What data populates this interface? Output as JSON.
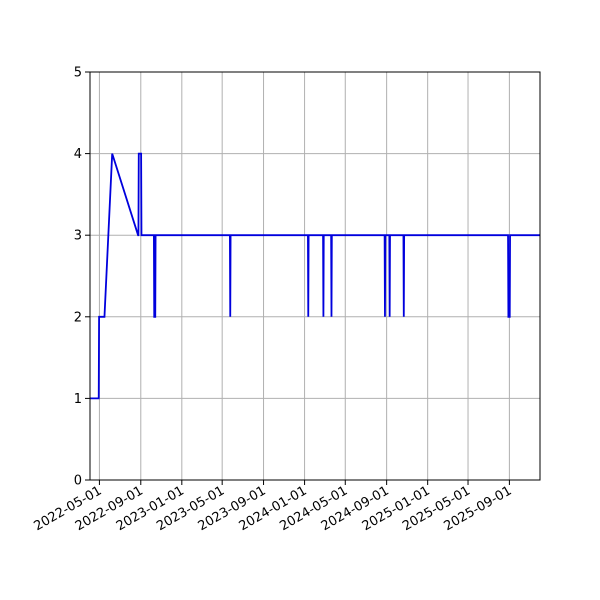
{
  "chart_data": {
    "type": "line",
    "title": "",
    "xlabel": "",
    "ylabel": "",
    "x_axis": "date",
    "xlim": [
      "2022-04-03",
      "2025-12-01"
    ],
    "ylim": [
      0,
      5
    ],
    "grid": true,
    "legend": "none",
    "colors": {
      "line": "#0000dd",
      "grid": "#b0b0b0",
      "axis": "#000000"
    },
    "x_ticks": [
      "2022-05-01",
      "2022-09-01",
      "2023-01-01",
      "2023-05-01",
      "2023-09-01",
      "2024-01-01",
      "2024-05-01",
      "2024-09-01",
      "2025-01-01",
      "2025-05-01",
      "2025-09-01"
    ],
    "y_ticks": [
      "0",
      "1",
      "2",
      "3",
      "4",
      "5"
    ],
    "series": [
      {
        "points": [
          [
            "2022-04-03",
            1
          ],
          [
            "2022-04-29",
            1
          ],
          [
            "2022-04-30",
            2
          ],
          [
            "2022-05-16",
            2
          ],
          [
            "2022-06-08",
            4
          ],
          [
            "2022-08-24",
            3
          ],
          [
            "2022-08-25",
            3
          ],
          [
            "2022-08-26",
            4
          ],
          [
            "2022-09-02",
            4
          ],
          [
            "2022-09-03",
            3
          ],
          [
            "2022-10-10",
            3
          ],
          [
            "2022-10-11",
            2
          ],
          [
            "2022-10-14",
            2
          ],
          [
            "2022-10-15",
            3
          ],
          [
            "2023-05-24",
            3
          ],
          [
            "2023-05-25",
            2
          ],
          [
            "2023-05-26",
            3
          ],
          [
            "2024-01-11",
            3
          ],
          [
            "2024-01-12",
            2
          ],
          [
            "2024-01-13",
            3
          ],
          [
            "2024-02-25",
            3
          ],
          [
            "2024-02-26",
            2
          ],
          [
            "2024-02-27",
            3
          ],
          [
            "2024-03-20",
            3
          ],
          [
            "2024-03-21",
            2
          ],
          [
            "2024-03-22",
            3
          ],
          [
            "2024-08-26",
            3
          ],
          [
            "2024-08-27",
            2
          ],
          [
            "2024-08-28",
            3
          ],
          [
            "2024-09-09",
            3
          ],
          [
            "2024-09-10",
            2
          ],
          [
            "2024-09-11",
            3
          ],
          [
            "2024-10-21",
            3
          ],
          [
            "2024-10-22",
            2
          ],
          [
            "2024-10-23",
            3
          ],
          [
            "2025-08-28",
            3
          ],
          [
            "2025-08-29",
            2
          ],
          [
            "2025-09-02",
            2
          ],
          [
            "2025-09-03",
            3
          ],
          [
            "2025-12-01",
            3
          ]
        ]
      }
    ]
  }
}
